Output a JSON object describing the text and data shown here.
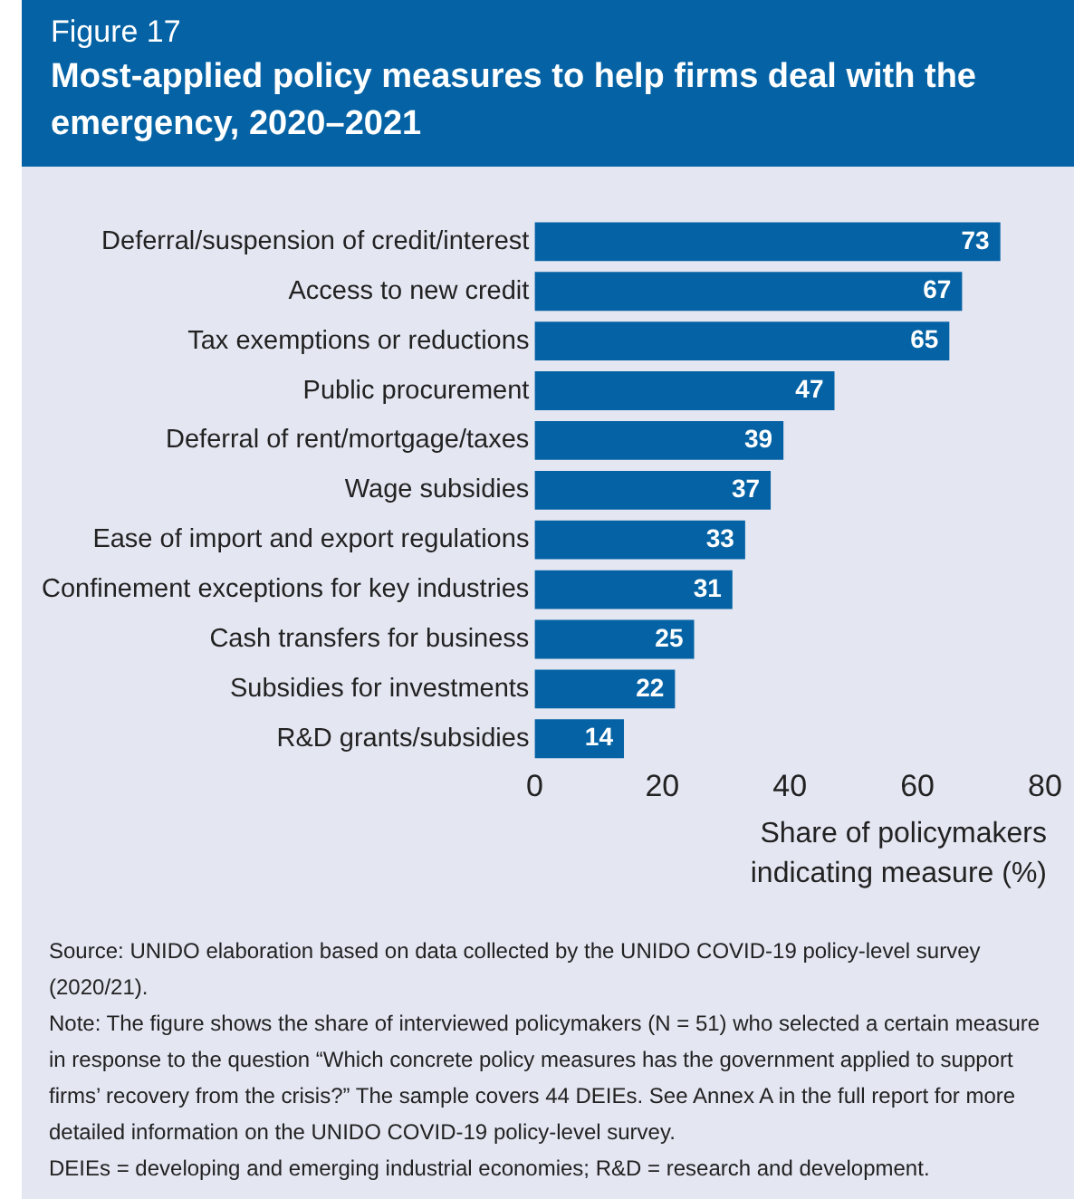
{
  "chart_data": {
    "type": "bar",
    "orientation": "horizontal",
    "subtitle": "Figure 17",
    "title": "Most-applied policy measures to help firms deal with the emergency, 2020–2021",
    "xlabel": "Share of policymakers indicating measure (%)",
    "categories": [
      "Deferral/suspension of credit/interest",
      "Access to new credit",
      "Tax exemptions or reductions",
      "Public procurement",
      "Deferral of rent/mortgage/taxes",
      "Wage subsidies",
      "Ease of import and export regulations",
      "Confinement exceptions for key industries",
      "Cash transfers for business",
      "Subsidies for investments",
      "R&D grants/subsidies"
    ],
    "values": [
      73,
      67,
      65,
      47,
      39,
      37,
      33,
      31,
      25,
      22,
      14
    ],
    "color": "#0563a5",
    "xlim": [
      0,
      80
    ],
    "xticks": [
      0,
      20,
      40,
      60,
      80
    ],
    "data_labels": true,
    "grid": false,
    "legend": false,
    "annotations": [
      "Source: UNIDO elaboration based on data collected by the UNIDO COVID-19 policy-level survey (2020/21).",
      "Note: The figure shows the share of interviewed policymakers (N = 51) who selected a certain measure in response to the question “Which concrete policy measures has the government applied to support firms’ recovery from the crisis?” The sample covers 44 DEIEs. See Annex A in the full report for more detailed information on the UNIDO COVID-19 policy-level survey.",
      "DEIEs = developing and emerging industrial economies; R&D = research and development."
    ]
  }
}
